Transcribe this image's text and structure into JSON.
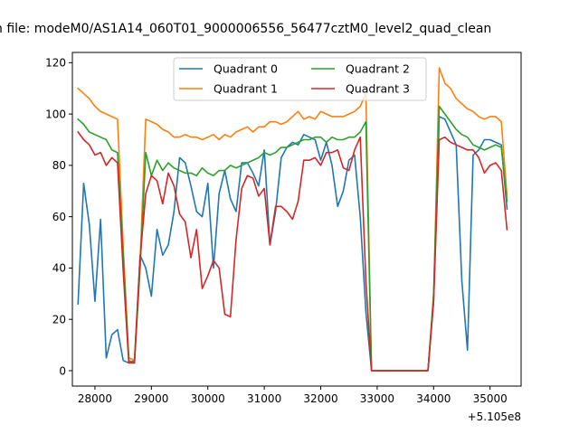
{
  "chart_data": {
    "type": "line",
    "title": "n file: modeM0/AS1A14_060T01_9000006556_56477cztM0_level2_quad_clean",
    "xlabel": "",
    "ylabel": "",
    "x_offset_label": "+5.105e8",
    "xlim": [
      27600,
      35550
    ],
    "ylim": [
      -6,
      124
    ],
    "x_ticks": [
      28000,
      29000,
      30000,
      31000,
      32000,
      33000,
      34000,
      35000
    ],
    "y_ticks": [
      0,
      20,
      40,
      60,
      80,
      100,
      120
    ],
    "grid": false,
    "legend": {
      "placement": "top-center",
      "columns": 2
    },
    "x": [
      27700,
      27800,
      27900,
      28000,
      28100,
      28200,
      28300,
      28400,
      28500,
      28600,
      28700,
      28800,
      28900,
      29000,
      29100,
      29200,
      29300,
      29400,
      29500,
      29600,
      29700,
      29800,
      29900,
      30000,
      30100,
      30200,
      30300,
      30400,
      30500,
      30600,
      30700,
      30800,
      30900,
      31000,
      31100,
      31200,
      31300,
      31400,
      31500,
      31600,
      31700,
      31800,
      31900,
      32000,
      32100,
      32200,
      32300,
      32400,
      32500,
      32600,
      32700,
      32800,
      32900,
      33000,
      33100,
      33200,
      33300,
      33400,
      33500,
      33600,
      33700,
      33800,
      33900,
      34000,
      34100,
      34200,
      34300,
      34400,
      34500,
      34600,
      34700,
      34800,
      34900,
      35000,
      35100,
      35200,
      35300
    ],
    "series": [
      {
        "name": "Quadrant 0",
        "color": "#1f77b4",
        "values": [
          26,
          73,
          57,
          27,
          59,
          5,
          14,
          16,
          4,
          3,
          4,
          45,
          40,
          29,
          55,
          45,
          49,
          62,
          83,
          81,
          72,
          62,
          60,
          73,
          40,
          69,
          78,
          67,
          62,
          81,
          81,
          77,
          72,
          86,
          49,
          62,
          83,
          87,
          89,
          88,
          92,
          91,
          90,
          82,
          89,
          80,
          64,
          70,
          82,
          84,
          60,
          23,
          0,
          0,
          0,
          0,
          0,
          0,
          0,
          0,
          0,
          0,
          0,
          27,
          99,
          98,
          93,
          88,
          35,
          8,
          84,
          86,
          90,
          90,
          89,
          88,
          63
        ]
      },
      {
        "name": "Quadrant 1",
        "color": "#ff7f0e",
        "values": [
          110,
          108,
          106,
          103,
          101,
          100,
          99,
          98,
          49,
          5,
          4,
          43,
          98,
          97,
          96,
          94,
          93,
          91,
          91,
          92,
          91,
          91,
          90,
          91,
          92,
          90,
          92,
          91,
          93,
          94,
          95,
          93,
          95,
          95,
          97,
          97,
          96,
          97,
          99,
          101,
          98,
          99,
          98,
          101,
          100,
          99,
          99,
          99,
          100,
          101,
          103,
          108,
          0,
          0,
          0,
          0,
          0,
          0,
          0,
          0,
          0,
          0,
          0,
          28,
          118,
          112,
          110,
          106,
          104,
          102,
          101,
          99,
          98,
          99,
          99,
          97,
          68
        ]
      },
      {
        "name": "Quadrant 2",
        "color": "#2ca02c",
        "values": [
          98,
          96,
          93,
          92,
          91,
          90,
          86,
          85,
          45,
          4,
          3,
          40,
          85,
          76,
          82,
          78,
          81,
          79,
          78,
          77,
          77,
          76,
          79,
          77,
          76,
          78,
          78,
          80,
          79,
          80,
          81,
          82,
          83,
          85,
          84,
          85,
          87,
          87,
          88,
          89,
          90,
          90,
          91,
          91,
          89,
          91,
          90,
          90,
          91,
          91,
          93,
          97,
          0,
          0,
          0,
          0,
          0,
          0,
          0,
          0,
          0,
          0,
          0,
          30,
          103,
          100,
          97,
          94,
          92,
          91,
          88,
          87,
          86,
          87,
          88,
          87,
          66
        ]
      },
      {
        "name": "Quadrant 3",
        "color": "#d62728",
        "values": [
          93,
          90,
          88,
          84,
          85,
          80,
          83,
          81,
          39,
          3,
          3,
          44,
          69,
          76,
          74,
          65,
          77,
          72,
          61,
          58,
          44,
          55,
          32,
          37,
          43,
          40,
          22,
          21,
          51,
          71,
          76,
          75,
          68,
          71,
          49,
          64,
          64,
          62,
          59,
          66,
          82,
          82,
          83,
          80,
          85,
          85,
          86,
          79,
          78,
          86,
          91,
          35,
          0,
          0,
          0,
          0,
          0,
          0,
          0,
          0,
          0,
          0,
          0,
          27,
          90,
          91,
          89,
          88,
          87,
          86,
          86,
          83,
          77,
          80,
          81,
          78,
          55
        ]
      }
    ]
  }
}
